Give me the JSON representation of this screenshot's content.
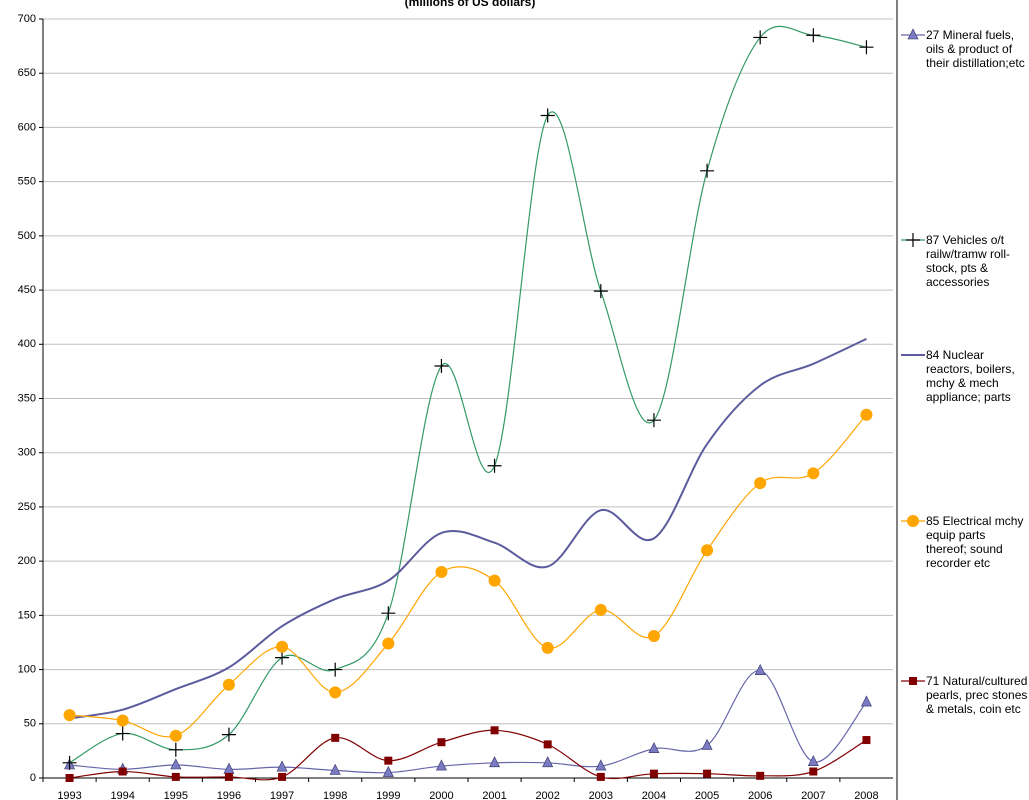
{
  "chart_data": {
    "type": "line",
    "subtitle": "(millions of US dollars)",
    "categories": [
      "1993",
      "1994",
      "1995",
      "1996",
      "1997",
      "1998",
      "1999",
      "2000",
      "2001",
      "2002",
      "2003",
      "2004",
      "2005",
      "2006",
      "2007",
      "2008"
    ],
    "ylim": [
      0,
      700
    ],
    "yticks": [
      0,
      50,
      100,
      150,
      200,
      250,
      300,
      350,
      400,
      450,
      500,
      550,
      600,
      650,
      700
    ],
    "grid": true,
    "smooth": true,
    "legend": "right",
    "series": [
      {
        "name": "27 Mineral fuels, oils & product of their distillation;etc",
        "color": "#6666aa",
        "marker": "triangle",
        "marker_color": "#7b7bc4",
        "values": [
          12,
          8,
          12,
          8,
          10,
          7,
          5,
          11,
          14,
          14,
          11,
          27,
          30,
          99,
          15,
          70
        ]
      },
      {
        "name": "87 Vehicles o/t railw/tramw roll-stock, pts & accessories",
        "color": "#339966",
        "marker": "plus",
        "marker_color": "#000000",
        "values": [
          14,
          41,
          26,
          40,
          111,
          100,
          152,
          380,
          288,
          611,
          449,
          330,
          560,
          683,
          685,
          674
        ]
      },
      {
        "name": "84 Nuclear reactors, boilers, mchy & mech appliance; parts",
        "color": "#5b5b9e",
        "marker": "none",
        "marker_color": "#5b5b9e",
        "values": [
          55,
          63,
          82,
          102,
          140,
          165,
          182,
          226,
          217,
          195,
          247,
          221,
          308,
          362,
          382,
          405
        ]
      },
      {
        "name": "85 Electrical mchy equip parts thereof; sound recorder etc",
        "color": "#ffa500",
        "marker": "circle",
        "marker_color": "#ffa500",
        "values": [
          58,
          53,
          39,
          86,
          121,
          79,
          124,
          190,
          182,
          120,
          155,
          131,
          210,
          272,
          281,
          335
        ]
      },
      {
        "name": "71 Natural/cultured pearls, prec stones & metals, coin etc",
        "color": "#800000",
        "marker": "square",
        "marker_color": "#800000",
        "values": [
          0,
          6,
          1,
          1,
          1,
          37,
          16,
          33,
          44,
          31,
          1,
          4,
          4,
          2,
          6,
          35
        ]
      }
    ]
  }
}
